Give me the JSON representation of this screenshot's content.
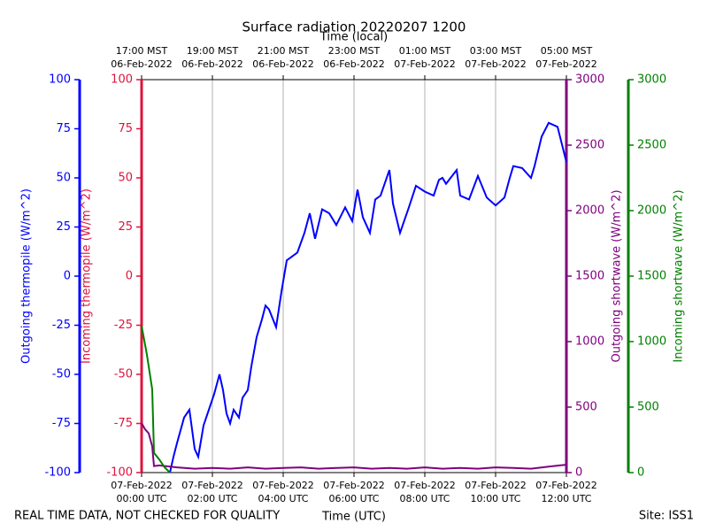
{
  "chart_data": {
    "type": "line",
    "title": "Surface radiation 20220207 1200",
    "x_label": "Time (UTC)",
    "x2_label": "Time (local)",
    "footer_left": "REAL TIME DATA, NOT CHECKED FOR QUALITY",
    "footer_right": "Site: ISS1",
    "grid": true,
    "xlim": [
      0,
      12
    ],
    "xticks": [
      {
        "value": 0,
        "label": [
          "07-Feb-2022",
          "00:00 UTC"
        ]
      },
      {
        "value": 2,
        "label": [
          "07-Feb-2022",
          "02:00 UTC"
        ]
      },
      {
        "value": 4,
        "label": [
          "07-Feb-2022",
          "04:00 UTC"
        ]
      },
      {
        "value": 6,
        "label": [
          "07-Feb-2022",
          "06:00 UTC"
        ]
      },
      {
        "value": 8,
        "label": [
          "07-Feb-2022",
          "08:00 UTC"
        ]
      },
      {
        "value": 10,
        "label": [
          "07-Feb-2022",
          "10:00 UTC"
        ]
      },
      {
        "value": 12,
        "label": [
          "07-Feb-2022",
          "12:00 UTC"
        ]
      }
    ],
    "x2ticks": [
      {
        "value": 0,
        "label": [
          "17:00 MST",
          "06-Feb-2022"
        ]
      },
      {
        "value": 2,
        "label": [
          "19:00 MST",
          "06-Feb-2022"
        ]
      },
      {
        "value": 4,
        "label": [
          "21:00 MST",
          "06-Feb-2022"
        ]
      },
      {
        "value": 6,
        "label": [
          "23:00 MST",
          "06-Feb-2022"
        ]
      },
      {
        "value": 8,
        "label": [
          "01:00 MST",
          "07-Feb-2022"
        ]
      },
      {
        "value": 10,
        "label": [
          "03:00 MST",
          "07-Feb-2022"
        ]
      },
      {
        "value": 12,
        "label": [
          "05:00 MST",
          "07-Feb-2022"
        ]
      }
    ],
    "ylabel": "Outgoing thermopile (W/m^2)",
    "ycolor": "#0000ff",
    "ylim": [
      -100,
      100
    ],
    "yticks": [
      -100,
      -75,
      -50,
      -25,
      0,
      25,
      50,
      75,
      100
    ],
    "y2label": "Incoming thermopile (W/m^2)",
    "y2color": "#dc143c",
    "y2lim": [
      -100,
      100
    ],
    "y2ticks": [
      -100,
      -75,
      -50,
      -25,
      0,
      25,
      50,
      75,
      100
    ],
    "y3label": "Outgoing shortwave (W/m^2)",
    "y3color": "#800080",
    "y3lim": [
      0,
      3000
    ],
    "y3ticks": [
      0,
      500,
      1000,
      1500,
      2000,
      2500,
      3000
    ],
    "y4label": "Incoming shortwave (W/m^2)",
    "y4color": "#008000",
    "y4lim": [
      0,
      3000
    ],
    "y4ticks": [
      0,
      500,
      1000,
      1500,
      2000,
      2500,
      3000
    ],
    "series": [
      {
        "name": "Outgoing thermopile",
        "color": "#0000ff",
        "axis": "y",
        "x": [
          0.8,
          0.9,
          1.0,
          1.2,
          1.35,
          1.5,
          1.6,
          1.75,
          1.9,
          2.05,
          2.2,
          2.3,
          2.4,
          2.5,
          2.6,
          2.75,
          2.85,
          3.0,
          3.1,
          3.25,
          3.4,
          3.5,
          3.6,
          3.8,
          3.95,
          4.1,
          4.25,
          4.4,
          4.6,
          4.75,
          4.9,
          5.1,
          5.3,
          5.5,
          5.75,
          5.95,
          6.1,
          6.25,
          6.45,
          6.6,
          6.75,
          7.0,
          7.1,
          7.3,
          7.55,
          7.75,
          8.0,
          8.25,
          8.4,
          8.5,
          8.6,
          8.9,
          9.0,
          9.25,
          9.5,
          9.75,
          10.0,
          10.25,
          10.4,
          10.5,
          10.75,
          11.0,
          11.1,
          11.3,
          11.5,
          11.75,
          12.0
        ],
        "values": [
          -100,
          -92,
          -85,
          -72,
          -68,
          -88,
          -92,
          -76,
          -68,
          -60,
          -50,
          -58,
          -70,
          -75,
          -68,
          -72,
          -62,
          -58,
          -46,
          -31,
          -22,
          -15,
          -17,
          -26,
          -8,
          8,
          10,
          12,
          22,
          32,
          19,
          34,
          32,
          26,
          35,
          28,
          44,
          30,
          22,
          39,
          41,
          54,
          37,
          22,
          35,
          46,
          43,
          41,
          49,
          50,
          47,
          54,
          41,
          39,
          51,
          40,
          36,
          40,
          50,
          56,
          55,
          50,
          56,
          71,
          78,
          76,
          58
        ]
      },
      {
        "name": "Outgoing shortwave",
        "color": "#800080",
        "axis": "y3",
        "x": [
          0,
          0.1,
          0.2,
          0.3,
          0.35,
          0.5,
          1,
          1.5,
          2,
          2.5,
          3,
          3.5,
          4,
          4.5,
          5,
          5.5,
          6,
          6.5,
          7,
          7.5,
          8,
          8.5,
          9,
          9.5,
          10,
          10.5,
          11,
          11.5,
          12
        ],
        "values": [
          378,
          330,
          300,
          200,
          50,
          55,
          40,
          30,
          35,
          30,
          40,
          30,
          35,
          40,
          30,
          35,
          40,
          30,
          35,
          30,
          40,
          30,
          35,
          30,
          40,
          35,
          30,
          45,
          60
        ]
      },
      {
        "name": "Incoming shortwave",
        "color": "#008000",
        "axis": "y4",
        "x": [
          0,
          0.15,
          0.3,
          0.35,
          0.5,
          0.65,
          0.8
        ],
        "values": [
          1120,
          900,
          635,
          150,
          100,
          40,
          0
        ]
      }
    ]
  }
}
